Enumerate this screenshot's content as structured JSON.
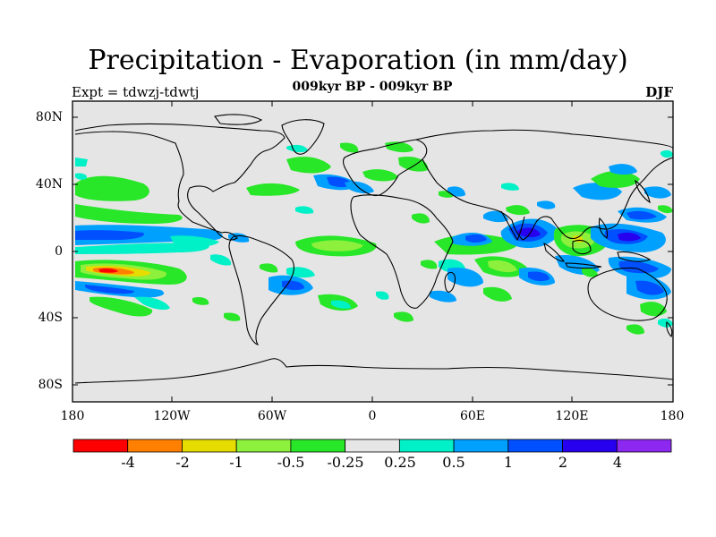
{
  "title": "Precipitation - Evaporation (in mm/day)",
  "subtitle": "009kyr BP - 009kyr BP",
  "left_label": "Expt = tdwzj-tdwtj",
  "right_label": "DJF",
  "map": {
    "lat_ticks": [
      "80N",
      "40N",
      "0",
      "40S",
      "80S"
    ],
    "lon_ticks": [
      "180",
      "120W",
      "60W",
      "0",
      "60E",
      "120E",
      "180"
    ],
    "background_color": "#e5e5e5",
    "coastline_color": "#000000"
  },
  "colorbar": {
    "labels": [
      "-4",
      "-2",
      "-1",
      "-0.5",
      "-0.25",
      "0.25",
      "0.5",
      "1",
      "2",
      "4"
    ],
    "colors": [
      "#ff0000",
      "#ff8000",
      "#e6dc00",
      "#8cf03c",
      "#28e628",
      "#e6e6e6",
      "#00f0c8",
      "#00a0ff",
      "#0050ff",
      "#2800f0",
      "#8c28f0"
    ]
  }
}
